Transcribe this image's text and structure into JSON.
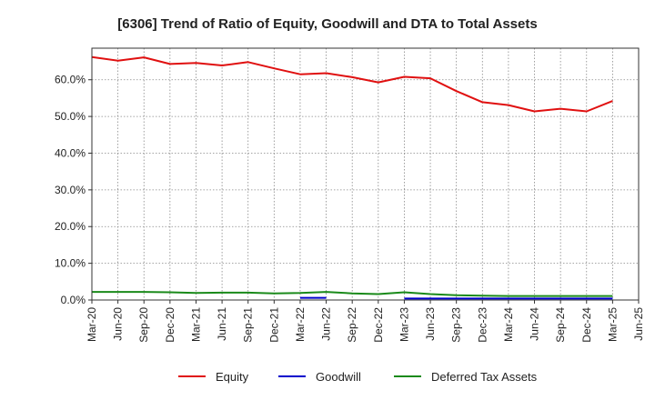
{
  "chart_data": {
    "type": "line",
    "title": "[6306]  Trend of Ratio of Equity, Goodwill and DTA to Total Assets",
    "xlabel": "",
    "ylabel": "",
    "ylim": [
      0,
      68.6
    ],
    "yticks": [
      0,
      10,
      20,
      30,
      40,
      50,
      60
    ],
    "yticklabels": [
      "0.0%",
      "10.0%",
      "20.0%",
      "30.0%",
      "40.0%",
      "50.0%",
      "60.0%"
    ],
    "categories": [
      "Mar-20",
      "Jun-20",
      "Sep-20",
      "Dec-20",
      "Mar-21",
      "Jun-21",
      "Sep-21",
      "Dec-21",
      "Mar-22",
      "Jun-22",
      "Sep-22",
      "Dec-22",
      "Mar-23",
      "Jun-23",
      "Sep-23",
      "Dec-23",
      "Mar-24",
      "Jun-24",
      "Sep-24",
      "Dec-24",
      "Mar-25",
      "Jun-25"
    ],
    "grid": true,
    "legend_position": "bottom",
    "series": [
      {
        "name": "Equity",
        "color": "#e01010",
        "values": [
          66.2,
          65.2,
          66.1,
          64.3,
          64.6,
          63.9,
          64.8,
          63.1,
          61.5,
          61.8,
          60.7,
          59.3,
          60.8,
          60.4,
          56.9,
          53.9,
          53.1,
          51.4,
          52.1,
          51.4,
          54.2,
          null
        ]
      },
      {
        "name": "Goodwill",
        "color": "#0000cc",
        "values": [
          null,
          null,
          null,
          null,
          null,
          null,
          null,
          null,
          0.6,
          0.6,
          null,
          null,
          0.4,
          0.4,
          0.4,
          0.4,
          0.4,
          0.4,
          0.4,
          0.4,
          0.4,
          null
        ]
      },
      {
        "name": "Deferred Tax Assets",
        "color": "#1a8a1a",
        "values": [
          2.2,
          2.2,
          2.2,
          2.1,
          1.9,
          2.0,
          2.0,
          1.8,
          1.9,
          2.2,
          1.8,
          1.6,
          2.1,
          1.6,
          1.3,
          1.2,
          1.1,
          1.1,
          1.1,
          1.1,
          1.1,
          null
        ]
      }
    ]
  }
}
